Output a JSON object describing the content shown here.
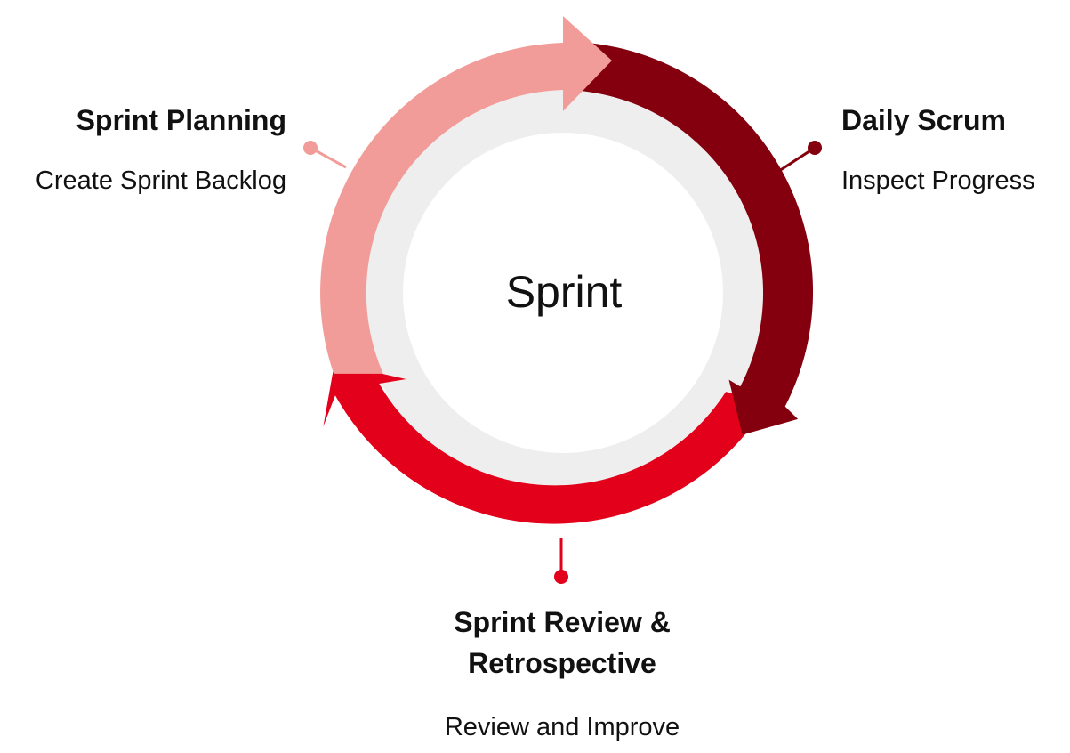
{
  "center": {
    "label": "Sprint"
  },
  "stages": [
    {
      "id": "planning",
      "title": "Sprint Planning",
      "description": "Create Sprint Backlog",
      "color": "#F29C99"
    },
    {
      "id": "daily",
      "title": "Daily Scrum",
      "description": "Inspect Progress",
      "color": "#85000F"
    },
    {
      "id": "review",
      "title": "Sprint Review & Retrospective",
      "description": "Review and Improve",
      "color": "#E2001A"
    }
  ],
  "colors": {
    "inner_ring": "#EEEEEE",
    "inner_disc": "#FFFFFF",
    "text": "#111111"
  }
}
